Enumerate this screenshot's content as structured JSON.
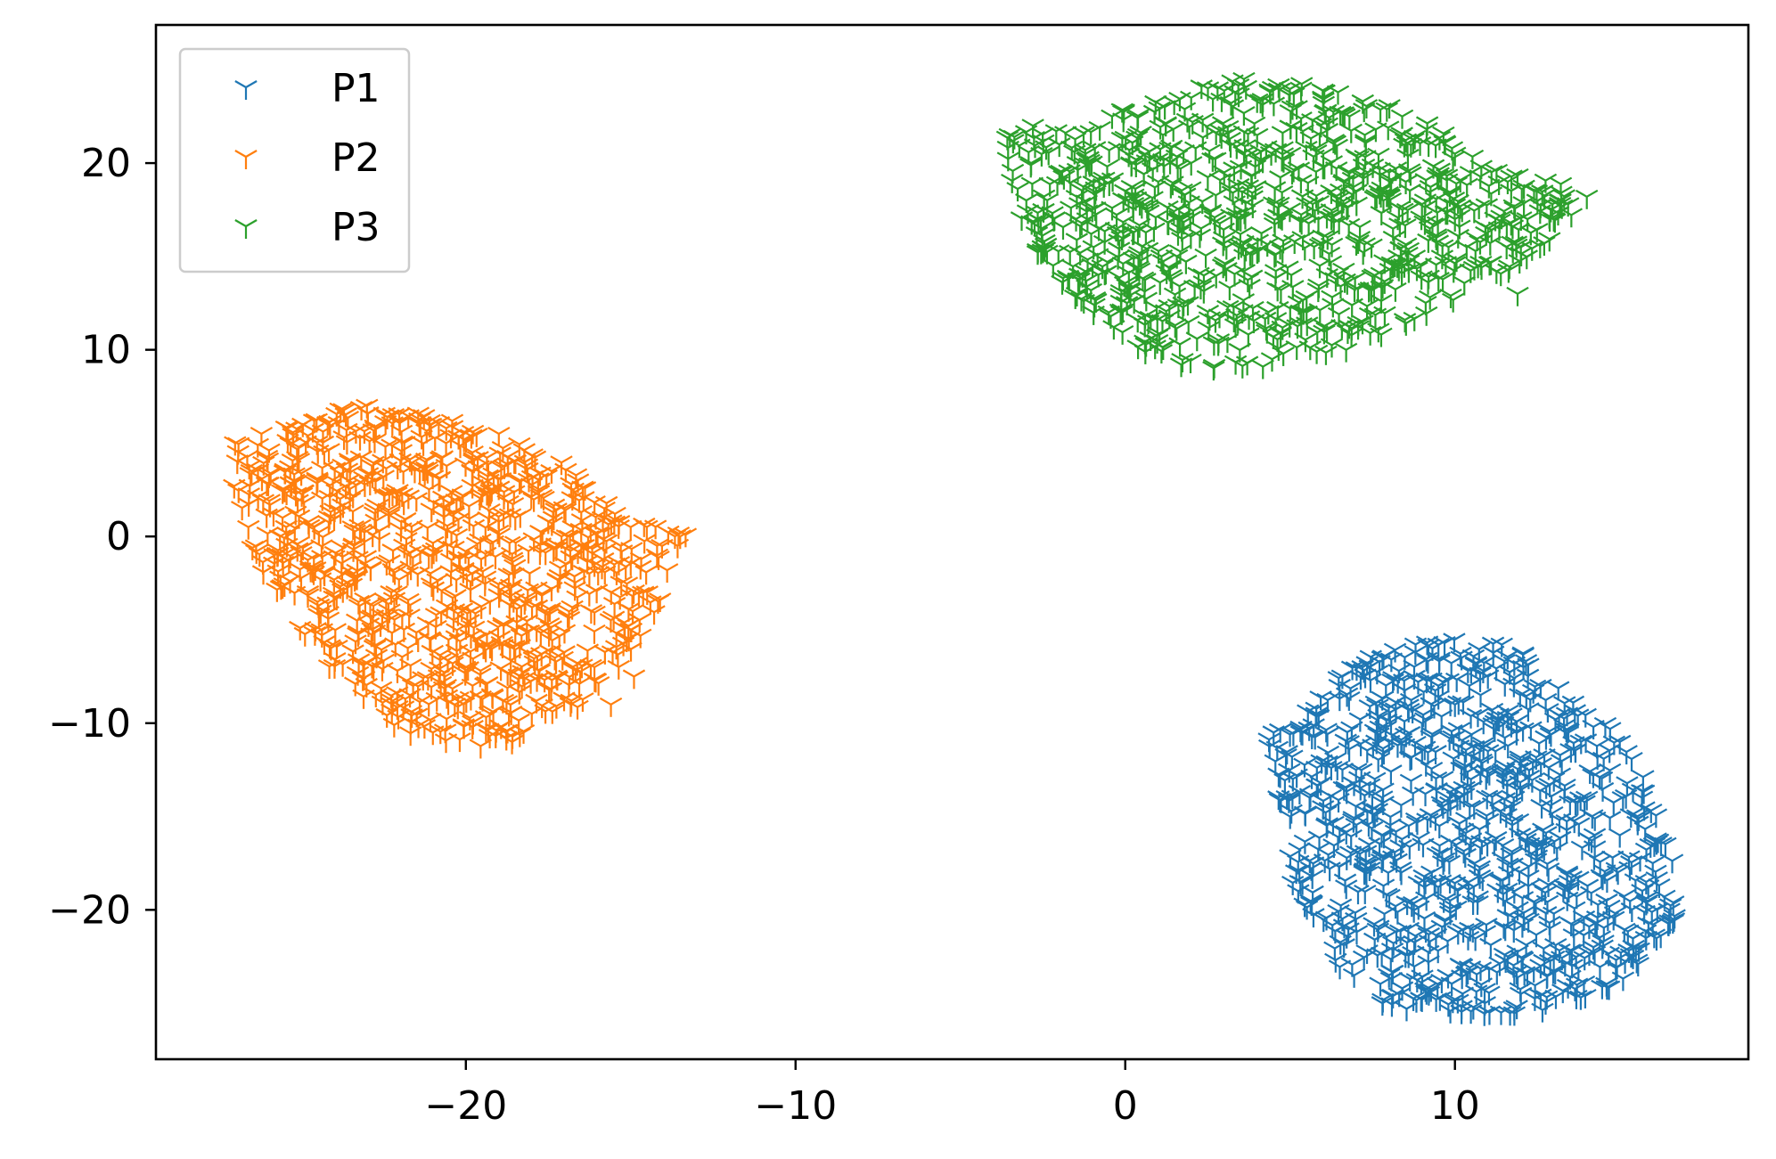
{
  "chart_data": {
    "type": "scatter",
    "title": "",
    "xlabel": "",
    "ylabel": "",
    "xlim": [
      -29.4,
      18.9
    ],
    "ylim": [
      -28.0,
      27.4
    ],
    "xticks": [
      -20,
      -10,
      0,
      10
    ],
    "xtick_labels": [
      "−20",
      "−10",
      "0",
      "10"
    ],
    "yticks": [
      -20,
      -10,
      0,
      10,
      20
    ],
    "ytick_labels": [
      "−20",
      "−10",
      "0",
      "10",
      "20"
    ],
    "grid": false,
    "legend": {
      "placement": "top-left"
    },
    "marker": "tri_down",
    "series": [
      {
        "name": "P1",
        "color": "#1f77b4",
        "region": {
          "x_range": [
            4.2,
            16.8
          ],
          "y_range": [
            -26.0,
            -5.0
          ],
          "center": [
            10.5,
            -16.0
          ]
        },
        "x": [
          4.5,
          5.2,
          5.8,
          6.5,
          7.2,
          7.8,
          8.3,
          8.8,
          9.5,
          10.2,
          11.0,
          11.8,
          12.6,
          13.4,
          14.2,
          15.0,
          15.8,
          16.5,
          5.0,
          6.0,
          7.0,
          8.0,
          9.0,
          10.0,
          11.0,
          12.0,
          13.0,
          14.0,
          15.0,
          16.0,
          6.2,
          7.4,
          8.6,
          9.8,
          11.0,
          12.2,
          13.4,
          14.6,
          15.8,
          7.0,
          8.2,
          9.4,
          10.6,
          11.8,
          13.0,
          14.2,
          8.0,
          9.2,
          10.4,
          11.6,
          12.8,
          7.8,
          8.4,
          9.0,
          9.6,
          10.2,
          10.8,
          11.4,
          12.0,
          12.6
        ],
        "y": [
          -10.5,
          -12.8,
          -9.5,
          -8.0,
          -7.0,
          -6.5,
          -7.2,
          -6.2,
          -5.8,
          -6.5,
          -7.5,
          -6.8,
          -8.0,
          -9.5,
          -10.2,
          -11.0,
          -18.5,
          -20.0,
          -15.0,
          -14.5,
          -12.5,
          -11.0,
          -10.0,
          -9.0,
          -11.5,
          -12.0,
          -13.0,
          -14.0,
          -16.0,
          -17.5,
          -17.8,
          -16.5,
          -15.5,
          -14.0,
          -15.2,
          -16.0,
          -18.0,
          -19.5,
          -21.5,
          -20.5,
          -19.8,
          -18.5,
          -17.5,
          -19.0,
          -20.2,
          -22.0,
          -23.5,
          -22.8,
          -21.5,
          -22.5,
          -23.5,
          -25.0,
          -24.2,
          -24.8,
          -23.8,
          -25.2,
          -24.0,
          -25.5,
          -24.5,
          -23.0
        ]
      },
      {
        "name": "P2",
        "color": "#ff7f0e",
        "region": {
          "x_range": [
            -27.2,
            -13.3
          ],
          "y_range": [
            -11.5,
            7.2
          ],
          "center": [
            -20.0,
            -2.0
          ]
        },
        "x": [
          -27.0,
          -26.2,
          -25.4,
          -24.6,
          -23.8,
          -23.0,
          -22.2,
          -21.4,
          -20.6,
          -19.8,
          -19.0,
          -18.2,
          -17.4,
          -16.6,
          -15.8,
          -15.0,
          -14.2,
          -13.5,
          -26.5,
          -25.5,
          -24.5,
          -23.5,
          -22.5,
          -21.5,
          -20.5,
          -19.5,
          -18.5,
          -17.5,
          -16.5,
          -15.5,
          -14.5,
          -25.8,
          -24.6,
          -23.4,
          -22.2,
          -21.0,
          -19.8,
          -18.6,
          -17.4,
          -16.2,
          -15.0,
          -24.5,
          -23.3,
          -22.1,
          -20.9,
          -19.7,
          -18.5,
          -17.3,
          -16.1,
          -14.9,
          -22.8,
          -21.6,
          -20.4,
          -19.2,
          -18.0,
          -16.8,
          -15.6,
          -21.0,
          -19.8,
          -18.6
        ],
        "y": [
          5.0,
          5.5,
          5.8,
          6.2,
          6.8,
          7.0,
          6.5,
          6.0,
          5.0,
          4.5,
          5.5,
          4.0,
          3.5,
          3.0,
          1.5,
          0.5,
          -0.5,
          0.0,
          3.5,
          2.5,
          3.0,
          4.0,
          3.2,
          2.0,
          1.8,
          2.5,
          1.0,
          0.8,
          -0.5,
          -1.5,
          -3.0,
          -1.0,
          0.5,
          -0.5,
          -1.8,
          -0.8,
          -2.0,
          -1.2,
          -2.8,
          -4.0,
          -5.0,
          -3.5,
          -4.5,
          -3.0,
          -4.2,
          -5.5,
          -5.0,
          -6.5,
          -7.0,
          -7.5,
          -7.0,
          -8.0,
          -6.8,
          -8.5,
          -9.5,
          -8.8,
          -9.0,
          -10.5,
          -10.2,
          -11.0
        ]
      },
      {
        "name": "P3",
        "color": "#2ca02c",
        "region": {
          "x_range": [
            -3.7,
            14.2
          ],
          "y_range": [
            8.5,
            25.0
          ],
          "center": [
            5.0,
            17.0
          ]
        },
        "x": [
          -3.5,
          -2.8,
          -2.0,
          -1.2,
          -0.4,
          0.4,
          1.2,
          2.0,
          2.8,
          3.6,
          4.4,
          5.2,
          6.0,
          6.8,
          7.6,
          8.4,
          9.2,
          10.0,
          10.8,
          11.6,
          12.4,
          13.2,
          14.0,
          -3.0,
          -2.0,
          -1.0,
          0.0,
          1.0,
          2.0,
          3.0,
          4.0,
          5.0,
          6.0,
          7.0,
          8.0,
          9.0,
          10.0,
          11.0,
          12.0,
          13.0,
          -2.5,
          -1.3,
          -0.1,
          1.1,
          2.3,
          3.5,
          4.7,
          5.9,
          7.1,
          8.3,
          9.5,
          10.7,
          11.9,
          -0.5,
          0.7,
          1.9,
          3.1,
          4.3,
          5.5,
          6.7
        ],
        "y": [
          21.5,
          22.0,
          21.0,
          20.5,
          22.5,
          21.5,
          23.0,
          23.5,
          24.0,
          24.5,
          23.8,
          23.0,
          23.5,
          22.5,
          21.8,
          22.5,
          21.0,
          20.5,
          19.8,
          19.0,
          18.5,
          18.0,
          18.2,
          18.0,
          19.5,
          17.5,
          18.5,
          19.0,
          20.0,
          19.5,
          21.5,
          20.5,
          19.8,
          18.5,
          19.5,
          17.8,
          17.0,
          16.5,
          15.5,
          17.0,
          15.5,
          14.0,
          16.0,
          15.0,
          16.5,
          17.0,
          15.5,
          14.5,
          16.0,
          15.0,
          13.8,
          14.5,
          13.0,
          12.0,
          11.5,
          12.5,
          10.5,
          11.0,
          12.0,
          10.0
        ]
      }
    ]
  }
}
